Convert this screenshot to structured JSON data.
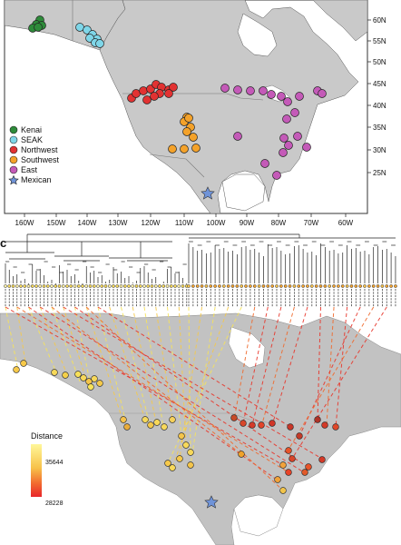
{
  "figure": {
    "panel_c_label": "c"
  },
  "map_top": {
    "lat_ticks": [
      "60N",
      "55N",
      "50N",
      "45N",
      "40N",
      "35N",
      "30N",
      "25N"
    ],
    "lon_ticks": [
      "160W",
      "150W",
      "140W",
      "130W",
      "120W",
      "110W",
      "100W",
      "90W",
      "80W",
      "70W",
      "60W"
    ],
    "legend": [
      {
        "label": "Kenai",
        "color": "#2e8b3a",
        "shape": "circle"
      },
      {
        "label": "SEAK",
        "color": "#7fd6e8",
        "shape": "circle"
      },
      {
        "label": "Northwest",
        "color": "#e23232",
        "shape": "circle"
      },
      {
        "label": "Southwest",
        "color": "#f4a22a",
        "shape": "circle"
      },
      {
        "label": "East",
        "color": "#c45ab8",
        "shape": "circle"
      },
      {
        "label": "Mexican",
        "color": "#6f93d8",
        "shape": "star"
      }
    ]
  },
  "distance_legend": {
    "title": "Distance",
    "max_label": "35644",
    "min_label": "28228",
    "color_high": "#fff79a",
    "color_low": "#e8262b"
  },
  "colors": {
    "land": "#c9c9c9",
    "ocean": "#ffffff",
    "land_lower": "#bdbdbd",
    "frame": "#333333"
  },
  "groups": {
    "kenai_color": "#2e8b3a",
    "seak_color": "#7fd6e8",
    "northwest_color": "#e23232",
    "southwest_color": "#f4a22a",
    "east_color": "#c45ab8",
    "mexican_color": "#6f93d8"
  }
}
